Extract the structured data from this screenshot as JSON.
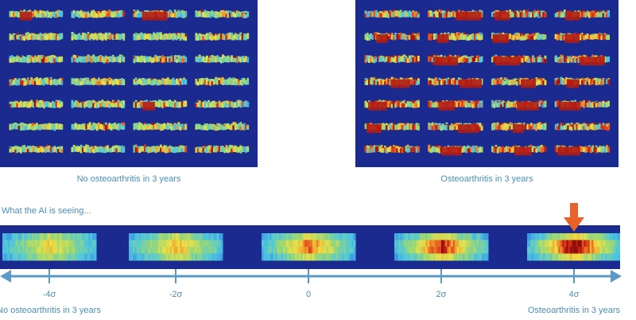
{
  "captions": {
    "left": "No osteoarthritis in 3 years",
    "right": "Osteoarthritis in 3 years"
  },
  "ai_heading": "What the AI is seeing...",
  "axis": {
    "ticks": [
      "-4σ",
      "-2σ",
      "0",
      "2σ",
      "4σ"
    ],
    "end_label_left": "No osteoarthritis in 3 years",
    "end_label_right": "Osteoarthritis in 3 years"
  },
  "grids": {
    "left": {
      "rows": 7,
      "cols": 4,
      "severity": 0.25
    },
    "right": {
      "rows": 7,
      "cols": 4,
      "severity": 0.75
    }
  },
  "gradient_strip": {
    "count": 5,
    "severity": [
      0.05,
      0.2,
      0.45,
      0.7,
      0.95
    ]
  },
  "marker": {
    "icon": "down-arrow-icon",
    "color": "#e8622a",
    "target_tick": "4σ"
  },
  "colors": {
    "panel_bg": "#1b2a8f",
    "text": "#4a8fb8",
    "axis": "#5a9ac7",
    "marker": "#e8622a"
  }
}
